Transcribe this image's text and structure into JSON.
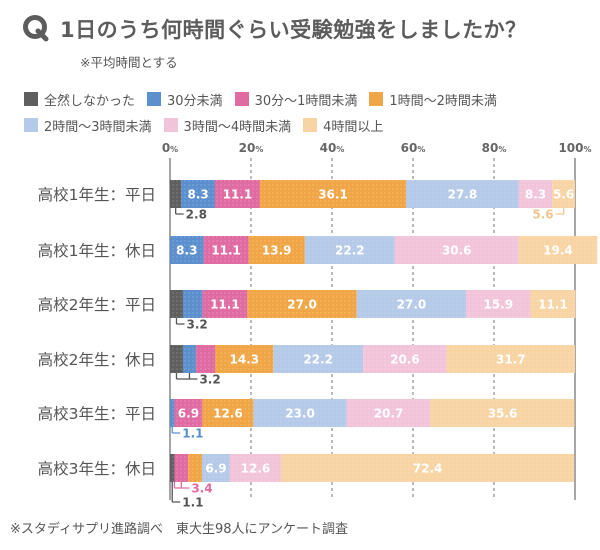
{
  "header": {
    "q_icon": "Q",
    "title": "1日のうち何時間ぐらい受験勉強をしましたか？",
    "subtitle": "※平均時間とする"
  },
  "footnote": "※スタディサプリ進路調べ　東大生98人にアンケート調査",
  "chart_data": {
    "type": "bar",
    "orientation": "horizontal-stacked-100",
    "title": "1日のうち何時間ぐらい受験勉強をしましたか？",
    "subtitle": "※平均時間とする",
    "xlabel": "",
    "ylabel": "",
    "xlim": [
      0,
      100
    ],
    "x_ticks": [
      0,
      20,
      40,
      60,
      80,
      100
    ],
    "x_tick_labels": [
      "0",
      "20",
      "40",
      "60",
      "80",
      "100"
    ],
    "x_tick_unit": "%",
    "grid": "vertical dashed",
    "legend_position": "top",
    "categories": [
      "高校1年生：平日",
      "高校1年生：休日",
      "高校2年生：平日",
      "高校2年生：休日",
      "高校3年生：平日",
      "高校3年生：休日"
    ],
    "series": [
      {
        "name": "全然しなかった",
        "color": "#5f5f5f",
        "values": [
          2.8,
          0,
          3.2,
          3.2,
          0,
          1.1
        ]
      },
      {
        "name": "30分未満",
        "color": "#5b8fce",
        "values": [
          8.3,
          8.3,
          4.8,
          3.2,
          1.1,
          0
        ]
      },
      {
        "name": "30分～1時間未満",
        "color": "#e06aa2",
        "values": [
          11.1,
          11.1,
          11.1,
          4.8,
          6.9,
          3.4
        ]
      },
      {
        "name": "1時間～2時間未満",
        "color": "#f0a646",
        "values": [
          36.1,
          13.9,
          27.0,
          14.3,
          12.6,
          3.4
        ]
      },
      {
        "name": "2時間～3時間未満",
        "color": "#b5c9e8",
        "values": [
          27.8,
          22.2,
          27.0,
          22.2,
          23.0,
          6.9
        ]
      },
      {
        "name": "3時間～4時間未満",
        "color": "#f2c4da",
        "values": [
          8.3,
          30.6,
          15.9,
          20.6,
          20.7,
          12.6
        ]
      },
      {
        "name": "4時間以上",
        "color": "#f8d3a4",
        "values": [
          5.6,
          19.4,
          11.1,
          31.7,
          35.6,
          72.4
        ]
      }
    ],
    "callouts": [
      {
        "row": 0,
        "series": [
          0
        ],
        "text": "2.8",
        "color": "#555555",
        "side": "left"
      },
      {
        "row": 0,
        "series": [
          6
        ],
        "text": "5.6",
        "color": "#f5c58f",
        "side": "right"
      },
      {
        "row": 2,
        "series": [
          0
        ],
        "text": "3.2",
        "color": "#555555",
        "side": "left"
      },
      {
        "row": 3,
        "series": [
          0,
          1
        ],
        "text": "3.2",
        "color": "#555555",
        "side": "left"
      },
      {
        "row": 4,
        "series": [
          1
        ],
        "text": "1.1",
        "color": "#5b8fce",
        "side": "left"
      },
      {
        "row": 5,
        "series": [
          1,
          2
        ],
        "text": "3.4",
        "color": "#e06aa2",
        "side": "left",
        "offset": 1
      },
      {
        "row": 5,
        "series": [
          0
        ],
        "text": "1.1",
        "color": "#555555",
        "side": "left",
        "offset": 2
      }
    ]
  },
  "legend": {
    "rows": [
      [
        0,
        1,
        2,
        3
      ],
      [
        4,
        5,
        6
      ]
    ]
  }
}
